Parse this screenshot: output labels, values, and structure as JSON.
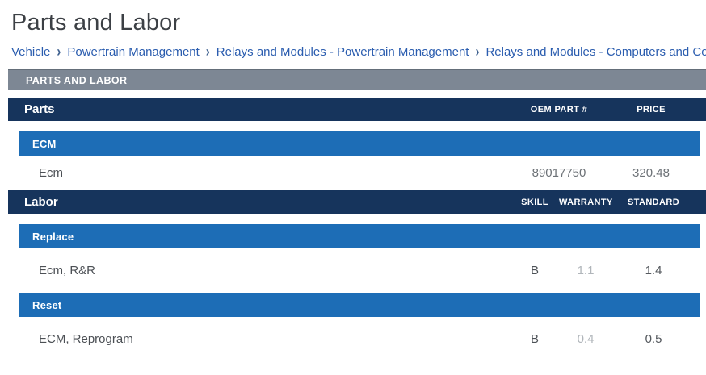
{
  "page": {
    "title": "Parts and Labor"
  },
  "breadcrumb": {
    "separator": "›",
    "items": [
      "Vehicle",
      "Powertrain Management",
      "Relays and Modules - Powertrain Management",
      "Relays and Modules - Computers and Control Sys"
    ]
  },
  "section_bar": {
    "label": "PARTS AND LABOR"
  },
  "parts": {
    "header": "Parts",
    "columns": [
      "OEM PART #",
      "PRICE"
    ],
    "groups": [
      {
        "name": "ECM",
        "rows": [
          {
            "label": "Ecm",
            "oem": "89017750",
            "price": "320.48"
          }
        ]
      }
    ]
  },
  "labor": {
    "header": "Labor",
    "columns": [
      "SKILL",
      "WARRANTY",
      "STANDARD"
    ],
    "groups": [
      {
        "name": "Replace",
        "rows": [
          {
            "label": "Ecm, R&R",
            "skill": "B",
            "warranty": "1.1",
            "standard": "1.4"
          }
        ]
      },
      {
        "name": "Reset",
        "rows": [
          {
            "label": "ECM, Reprogram",
            "skill": "B",
            "warranty": "0.4",
            "standard": "0.5"
          }
        ]
      }
    ]
  },
  "colors": {
    "navy_header": "#16345c",
    "blue_group_bar": "#1d6db6",
    "gray_section_bar": "#7d8794",
    "breadcrumb_link": "#2b5daf",
    "title_text": "#3c4045"
  }
}
